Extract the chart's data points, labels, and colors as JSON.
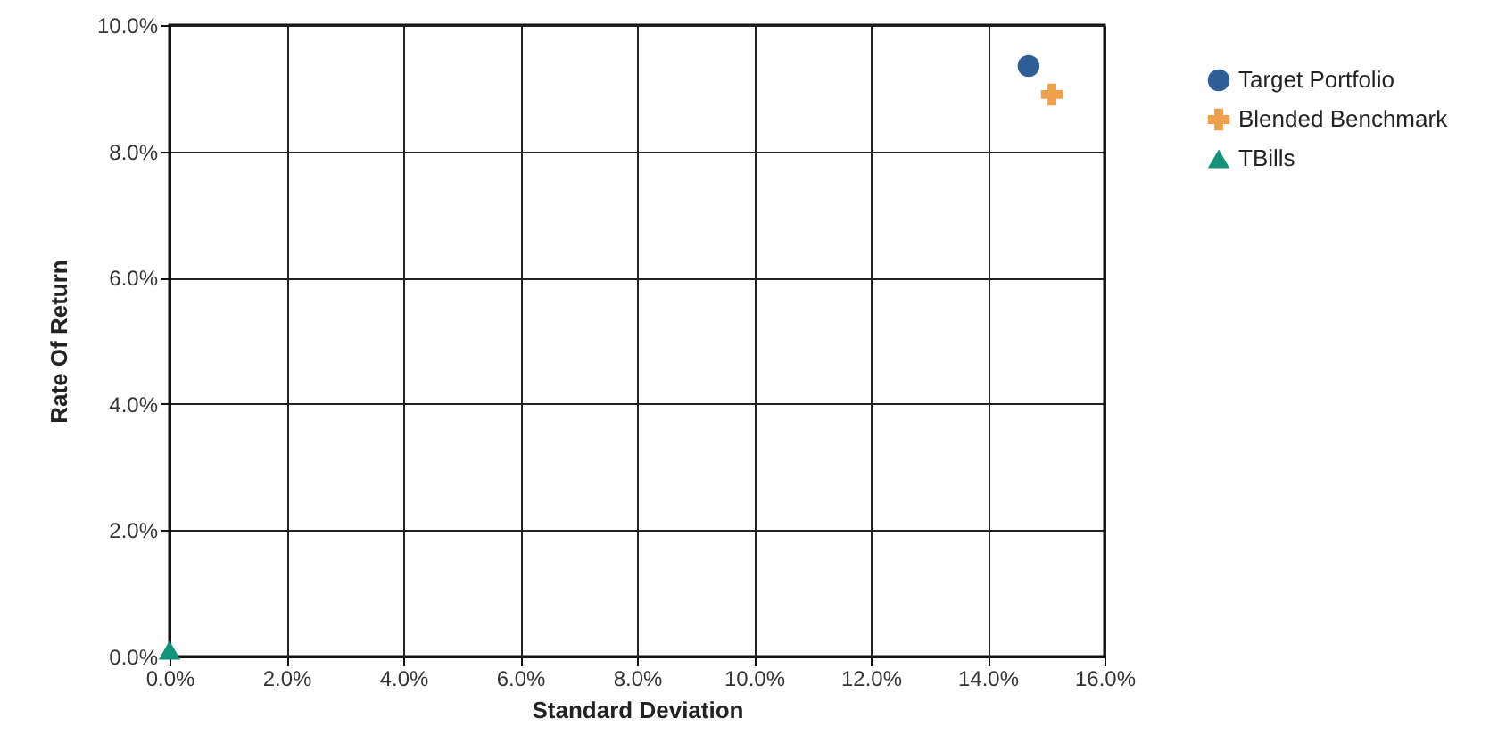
{
  "chart_data": {
    "type": "scatter",
    "xlabel": "Standard Deviation",
    "ylabel": "Rate Of Return",
    "xlim": [
      0,
      16
    ],
    "ylim": [
      0,
      10
    ],
    "xticks": [
      {
        "value": 0,
        "label": "0.0%"
      },
      {
        "value": 2,
        "label": "2.0%"
      },
      {
        "value": 4,
        "label": "4.0%"
      },
      {
        "value": 6,
        "label": "6.0%"
      },
      {
        "value": 8,
        "label": "8.0%"
      },
      {
        "value": 10,
        "label": "10.0%"
      },
      {
        "value": 12,
        "label": "12.0%"
      },
      {
        "value": 14,
        "label": "14.0%"
      },
      {
        "value": 16,
        "label": "16.0%"
      }
    ],
    "yticks": [
      {
        "value": 0,
        "label": "0.0%"
      },
      {
        "value": 2,
        "label": "2.0%"
      },
      {
        "value": 4,
        "label": "4.0%"
      },
      {
        "value": 6,
        "label": "6.0%"
      },
      {
        "value": 8,
        "label": "8.0%"
      },
      {
        "value": 10,
        "label": "10.0%"
      }
    ],
    "grid": true,
    "legend": "top right",
    "series": [
      {
        "name": "Target Portfolio",
        "color": "#2f5d96",
        "marker": "circle",
        "x": [
          14.7
        ],
        "values": [
          9.35
        ]
      },
      {
        "name": "Blended Benchmark",
        "color": "#f0a04b",
        "marker": "cross",
        "x": [
          15.1
        ],
        "values": [
          8.9
        ]
      },
      {
        "name": "TBills",
        "color": "#13937a",
        "marker": "triangle",
        "x": [
          0
        ],
        "values": [
          0.1
        ]
      }
    ]
  }
}
